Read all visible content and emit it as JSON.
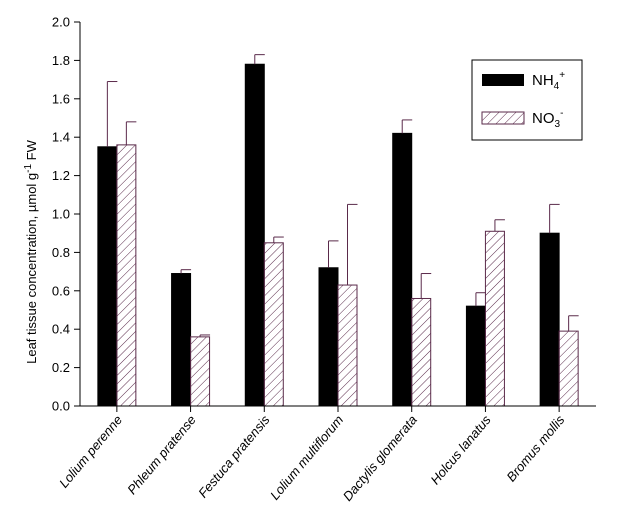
{
  "chart_data": {
    "type": "bar",
    "title": "",
    "xlabel": "",
    "ylabel": "Leaf tissue concentration, µmol g⁻¹ FW",
    "ylim": [
      0,
      2.0
    ],
    "yticks": [
      "0.0",
      "0.2",
      "0.4",
      "0.6",
      "0.8",
      "1.0",
      "1.2",
      "1.4",
      "1.6",
      "1.8",
      "2.0"
    ],
    "categories": [
      "Lolium perenne",
      "Phleum pratense",
      "Festuca pratensis",
      "Lolium multiflorum",
      "Dactylis glomerata",
      "Holcus lanatus",
      "Bromus mollis"
    ],
    "series": [
      {
        "name": "NH4+",
        "values": [
          1.35,
          0.69,
          1.78,
          0.72,
          1.42,
          0.52,
          0.9
        ],
        "errors": [
          0.34,
          0.02,
          0.05,
          0.14,
          0.07,
          0.07,
          0.15
        ],
        "style": "solid",
        "color": "#000000"
      },
      {
        "name": "NO3-",
        "values": [
          1.36,
          0.36,
          0.85,
          0.63,
          0.56,
          0.91,
          0.39
        ],
        "errors": [
          0.12,
          0.01,
          0.03,
          0.42,
          0.13,
          0.06,
          0.08
        ],
        "style": "hatched",
        "color": "#5a2a4a"
      }
    ],
    "legend": {
      "placement": "top-right",
      "entries": [
        {
          "base": "NH",
          "sub": "4",
          "sup": "+"
        },
        {
          "base": "NO",
          "sub": "3",
          "sup": "-"
        }
      ]
    },
    "grid": false
  }
}
